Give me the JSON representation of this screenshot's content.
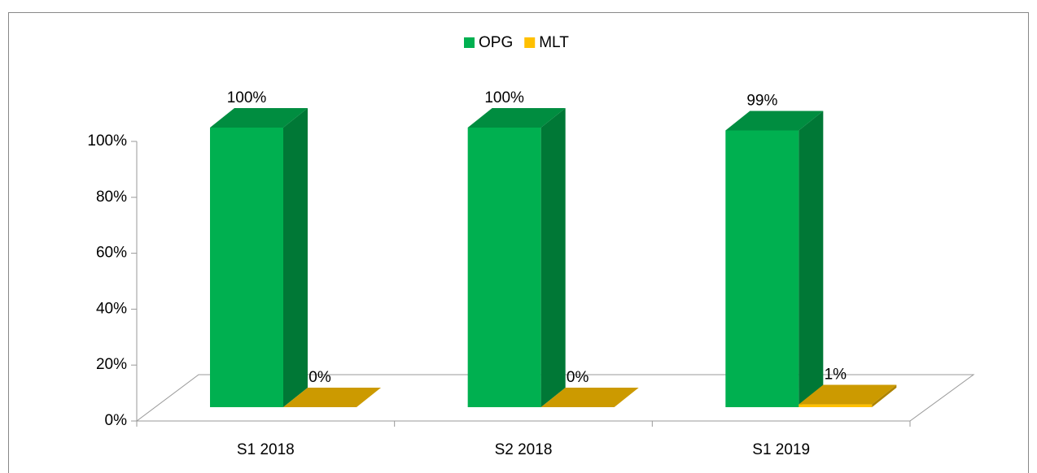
{
  "chart_data": {
    "type": "bar3d",
    "categories": [
      "S1 2018",
      "S2 2018",
      "S1 2019"
    ],
    "series": [
      {
        "name": "OPG",
        "color": "#00b050",
        "values": [
          100,
          100,
          99
        ],
        "value_labels": [
          "100%",
          "100%",
          "99%"
        ]
      },
      {
        "name": "MLT",
        "color": "#ffc000",
        "values": [
          0,
          0,
          1
        ],
        "value_labels": [
          "0%",
          "0%",
          "1%"
        ]
      }
    ],
    "ylim": [
      0,
      100
    ],
    "yticks": [
      {
        "value": 0,
        "label": "0%"
      },
      {
        "value": 20,
        "label": "20%"
      },
      {
        "value": 40,
        "label": "40%"
      },
      {
        "value": 60,
        "label": "60%"
      },
      {
        "value": 80,
        "label": "80%"
      },
      {
        "value": 100,
        "label": "100%"
      }
    ],
    "legend": "top"
  }
}
